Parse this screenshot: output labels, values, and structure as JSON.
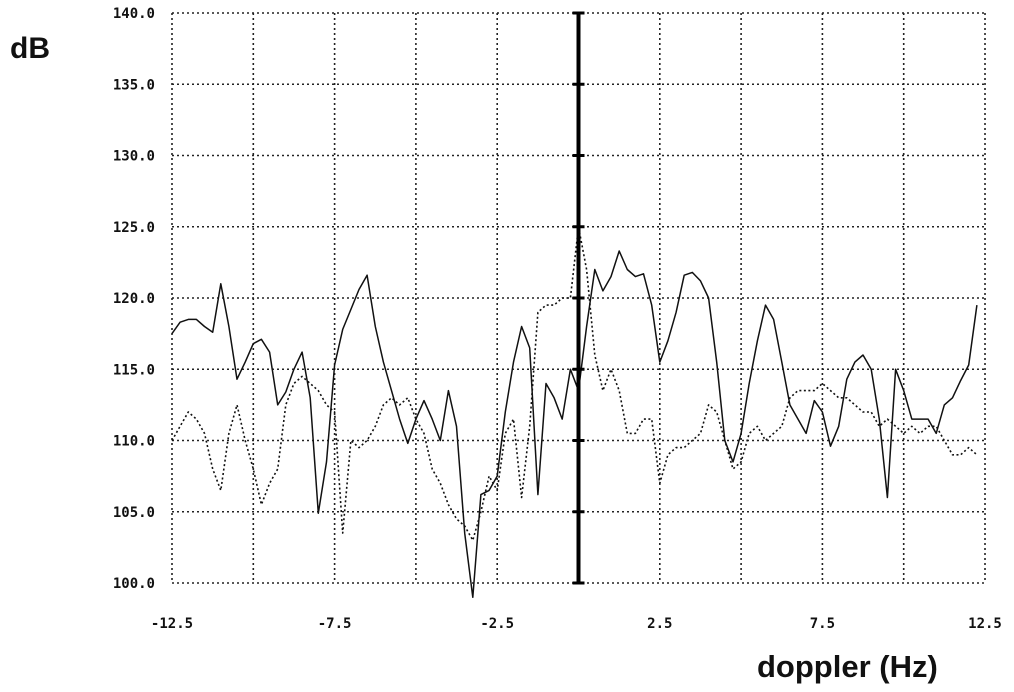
{
  "chart_data": {
    "type": "line",
    "title": "",
    "ylabel": "dB",
    "xlabel": "doppler (Hz)",
    "xlim": [
      -12.5,
      12.5
    ],
    "ylim": [
      100,
      140
    ],
    "x_ticks": [
      -12.5,
      -7.5,
      -2.5,
      2.5,
      7.5,
      12.5
    ],
    "x_tick_labels": [
      "-12.5",
      "-7.5",
      "-2.5",
      "2.5",
      "7.5",
      "12.5"
    ],
    "y_ticks": [
      100,
      105,
      110,
      115,
      120,
      125,
      130,
      135,
      140
    ],
    "y_tick_labels": [
      "100.0",
      "105.0",
      "110.0",
      "115.0",
      "120.0",
      "125.0",
      "130.0",
      "135.0",
      "140.0"
    ],
    "grid": true,
    "center_line_x": 0,
    "series": [
      {
        "style": "solid",
        "color": "#111111",
        "x": [
          -12.5,
          -12.25,
          -12.0,
          -11.75,
          -11.5,
          -11.25,
          -11.0,
          -10.75,
          -10.5,
          -10.25,
          -10.0,
          -9.75,
          -9.5,
          -9.25,
          -9.0,
          -8.75,
          -8.5,
          -8.25,
          -8.0,
          -7.75,
          -7.5,
          -7.25,
          -7.0,
          -6.75,
          -6.5,
          -6.25,
          -6.0,
          -5.75,
          -5.5,
          -5.25,
          -5.0,
          -4.75,
          -4.5,
          -4.25,
          -4.0,
          -3.75,
          -3.5,
          -3.25,
          -3.0,
          -2.75,
          -2.5,
          -2.25,
          -2.0,
          -1.75,
          -1.5,
          -1.25,
          -1.0,
          -0.75,
          -0.5,
          -0.25,
          0.0,
          0.25,
          0.5,
          0.75,
          1.0,
          1.25,
          1.5,
          1.75,
          2.0,
          2.25,
          2.5,
          2.75,
          3.0,
          3.25,
          3.5,
          3.75,
          4.0,
          4.25,
          4.5,
          4.75,
          5.0,
          5.25,
          5.5,
          5.75,
          6.0,
          6.25,
          6.5,
          6.75,
          7.0,
          7.25,
          7.5,
          7.75,
          8.0,
          8.25,
          8.5,
          8.75,
          9.0,
          9.25,
          9.5,
          9.75,
          10.0,
          10.25,
          10.5,
          10.75,
          11.0,
          11.25,
          11.5,
          11.75,
          12.0,
          12.25
        ],
        "values": [
          117.5,
          118.3,
          118.5,
          118.5,
          118.0,
          117.6,
          121.0,
          118.0,
          114.3,
          115.5,
          116.8,
          117.1,
          116.2,
          112.5,
          113.4,
          115.0,
          116.2,
          113.0,
          104.9,
          108.5,
          115.3,
          117.8,
          119.2,
          120.6,
          121.6,
          118.0,
          115.5,
          113.5,
          111.5,
          109.8,
          111.5,
          112.8,
          111.5,
          110.0,
          113.5,
          111.0,
          103.5,
          99.0,
          106.2,
          106.5,
          107.5,
          112.0,
          115.5,
          118.0,
          116.5,
          106.2,
          114.0,
          113.0,
          111.5,
          115.0,
          113.5,
          118.0,
          122.0,
          120.5,
          121.5,
          123.3,
          122.0,
          121.5,
          121.7,
          119.5,
          115.5,
          117.0,
          119.0,
          121.6,
          121.8,
          121.2,
          120.0,
          115.5,
          110.0,
          108.5,
          110.5,
          114.0,
          117.0,
          119.5,
          118.5,
          115.5,
          112.5,
          111.5,
          110.5,
          112.8,
          112.0,
          109.6,
          111.0,
          114.3,
          115.5,
          116.0,
          115.0,
          111.5,
          106.0,
          115.0,
          113.5,
          111.5,
          111.5,
          111.5,
          110.5,
          112.5,
          113.0,
          114.2,
          115.3,
          119.5
        ]
      },
      {
        "style": "dotted",
        "color": "#111111",
        "x": [
          -12.5,
          -12.25,
          -12.0,
          -11.75,
          -11.5,
          -11.25,
          -11.0,
          -10.75,
          -10.5,
          -10.25,
          -10.0,
          -9.75,
          -9.5,
          -9.25,
          -9.0,
          -8.75,
          -8.5,
          -8.25,
          -8.0,
          -7.75,
          -7.5,
          -7.25,
          -7.0,
          -6.75,
          -6.5,
          -6.25,
          -6.0,
          -5.75,
          -5.5,
          -5.25,
          -5.0,
          -4.75,
          -4.5,
          -4.25,
          -4.0,
          -3.75,
          -3.5,
          -3.25,
          -3.0,
          -2.75,
          -2.5,
          -2.25,
          -2.0,
          -1.75,
          -1.5,
          -1.25,
          -1.0,
          -0.75,
          -0.5,
          -0.25,
          0.0,
          0.25,
          0.5,
          0.75,
          1.0,
          1.25,
          1.5,
          1.75,
          2.0,
          2.25,
          2.5,
          2.75,
          3.0,
          3.25,
          3.5,
          3.75,
          4.0,
          4.25,
          4.5,
          4.75,
          5.0,
          5.25,
          5.5,
          5.75,
          6.0,
          6.25,
          6.5,
          6.75,
          7.0,
          7.25,
          7.5,
          7.75,
          8.0,
          8.25,
          8.5,
          8.75,
          9.0,
          9.25,
          9.5,
          9.75,
          10.0,
          10.25,
          10.5,
          10.75,
          11.0,
          11.25,
          11.5,
          11.75,
          12.0,
          12.25
        ],
        "values": [
          110.0,
          111.0,
          112.0,
          111.5,
          110.5,
          108.0,
          106.5,
          110.5,
          112.5,
          110.0,
          108.0,
          105.5,
          107.0,
          108.0,
          112.5,
          114.0,
          114.5,
          114.0,
          113.5,
          112.5,
          112.0,
          103.5,
          110.0,
          109.5,
          110.0,
          111.0,
          112.5,
          113.0,
          112.5,
          113.0,
          111.5,
          110.5,
          108.0,
          107.0,
          105.5,
          104.5,
          104.0,
          103.0,
          105.0,
          107.5,
          106.5,
          110.5,
          111.5,
          106.0,
          111.0,
          119.0,
          119.5,
          119.5,
          120.0,
          120.0,
          125.0,
          122.0,
          116.0,
          113.5,
          115.0,
          113.5,
          110.5,
          110.5,
          111.5,
          111.5,
          107.0,
          109.0,
          109.5,
          109.5,
          110.0,
          110.5,
          112.5,
          112.0,
          110.0,
          108.0,
          108.5,
          110.5,
          111.0,
          110.0,
          110.5,
          111.0,
          113.0,
          113.5,
          113.5,
          113.5,
          114.0,
          113.5,
          113.0,
          113.0,
          112.5,
          112.0,
          112.0,
          111.0,
          111.5,
          111.0,
          110.5,
          111.0,
          110.5,
          111.0,
          111.0,
          110.0,
          109.0,
          109.0,
          109.5,
          109.0
        ]
      }
    ]
  }
}
